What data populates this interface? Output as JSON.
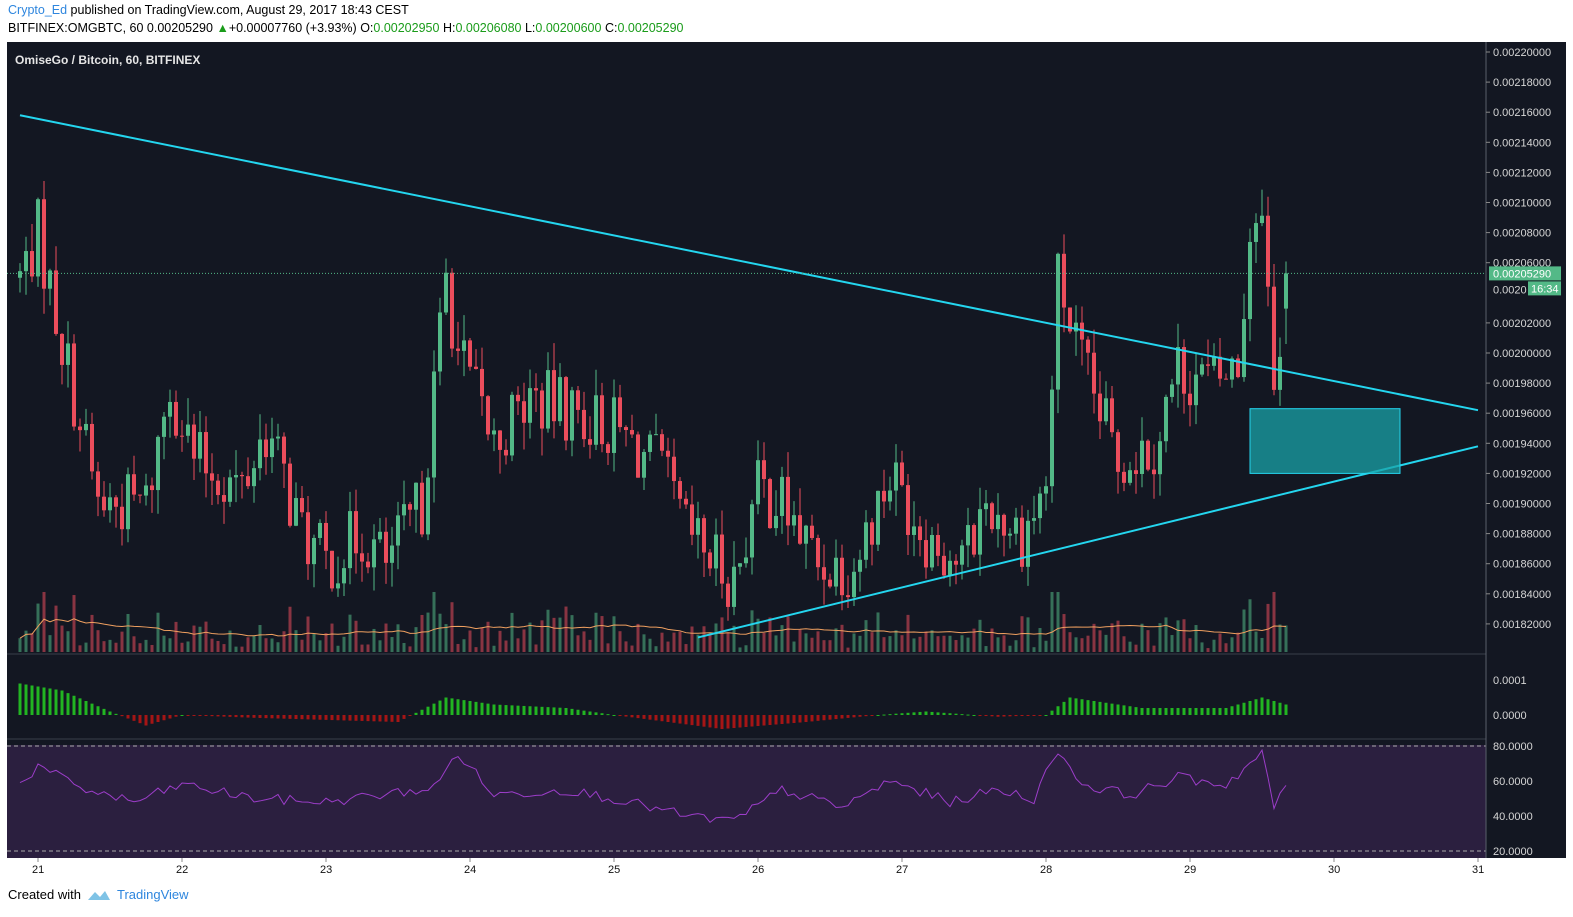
{
  "header": {
    "author": "Crypto_Ed",
    "published_text": "published on TradingView.com, August 29, 2017 18:43 CEST",
    "symbol": "BITFINEX:OMGBTC, 60",
    "last": "0.00205290",
    "change": "+0.00007760 (+3.93%)",
    "o_label": "O:",
    "o_value": "0.00202950",
    "h_label": "H:",
    "h_value": "0.00206080",
    "l_label": "L:",
    "l_value": "0.00200600",
    "c_label": "C:",
    "c_value": "0.00205290"
  },
  "chart_title": "OmiseGo / Bitcoin, 60, BITFINEX",
  "price_axis": {
    "ticks": [
      "0.00220000",
      "0.00218000",
      "0.00216000",
      "0.00214000",
      "0.00212000",
      "0.00210000",
      "0.00208000",
      "0.00206000",
      "0.00202000",
      "0.00200000",
      "0.00198000",
      "0.00196000",
      "0.00194000",
      "0.00192000",
      "0.00190000",
      "0.00188000",
      "0.00186000",
      "0.00184000",
      "0.00182000"
    ],
    "last_price_label": "0.00205290",
    "countdown_prefix": "0.0020",
    "countdown": "16:34"
  },
  "macd_axis": {
    "ticks": [
      "0.0001",
      "0.0000"
    ]
  },
  "rsi_axis": {
    "ticks": [
      "80.0000",
      "60.0000",
      "40.0000",
      "20.0000"
    ]
  },
  "date_axis": {
    "labels": [
      "21",
      "22",
      "23",
      "24",
      "25",
      "26",
      "27",
      "28",
      "29",
      "30",
      "31"
    ]
  },
  "footer": {
    "created_with": "Created with",
    "brand": "TradingView"
  },
  "colors": {
    "background": "#131722",
    "up": "#53b987",
    "down": "#eb4d5c",
    "trendline": "#24d6ef",
    "zone_fill": "#1aa3a8",
    "volume_ma": "#f0a060",
    "macd_up": "#22b522",
    "macd_down": "#a51515",
    "rsi_line": "#9c3dc9",
    "rsi_band": "#2b1f3f"
  },
  "chart_data": {
    "type": "candlestick",
    "symbol": "BITFINEX:OMGBTC",
    "interval": "60",
    "x_labels": [
      "21",
      "22",
      "23",
      "24",
      "25",
      "26",
      "27",
      "28",
      "29",
      "30",
      "31"
    ],
    "ylim": [
      0.00181,
      0.00222
    ],
    "anchors": [
      {
        "date": "Aug 20 21:00",
        "price": 0.00205
      },
      {
        "date": "Aug 21 00:00",
        "price": 0.00208
      },
      {
        "date": "Aug 21 10:00",
        "price": 0.0019
      },
      {
        "date": "Aug 21 18:00",
        "price": 0.0019
      },
      {
        "date": "Aug 21 22:00",
        "price": 0.00198
      },
      {
        "date": "Aug 22 02:00",
        "price": 0.00193
      },
      {
        "date": "Aug 22 10:00",
        "price": 0.00191
      },
      {
        "date": "Aug 22 14:00",
        "price": 0.00195
      },
      {
        "date": "Aug 22 20:00",
        "price": 0.00188
      },
      {
        "date": "Aug 23 00:00",
        "price": 0.00186
      },
      {
        "date": "Aug 23 06:00",
        "price": 0.00188
      },
      {
        "date": "Aug 23 10:00",
        "price": 0.00186
      },
      {
        "date": "Aug 23 16:00",
        "price": 0.0019
      },
      {
        "date": "Aug 23 20:00",
        "price": 0.00205
      },
      {
        "date": "Aug 23 22:00",
        "price": 0.002
      },
      {
        "date": "Aug 24 04:00",
        "price": 0.00194
      },
      {
        "date": "Aug 24 10:00",
        "price": 0.00197
      },
      {
        "date": "Aug 24 18:00",
        "price": 0.00196
      },
      {
        "date": "Aug 25 00:00",
        "price": 0.00195
      },
      {
        "date": "Aug 25 08:00",
        "price": 0.00192
      },
      {
        "date": "Aug 25 12:00",
        "price": 0.00188
      },
      {
        "date": "Aug 25 20:00",
        "price": 0.00185
      },
      {
        "date": "Aug 26 00:00",
        "price": 0.00191
      },
      {
        "date": "Aug 26 04:00",
        "price": 0.0019
      },
      {
        "date": "Aug 26 10:00",
        "price": 0.00186
      },
      {
        "date": "Aug 26 16:00",
        "price": 0.00186
      },
      {
        "date": "Aug 26 22:00",
        "price": 0.00192
      },
      {
        "date": "Aug 27 04:00",
        "price": 0.00188
      },
      {
        "date": "Aug 27 10:00",
        "price": 0.00186
      },
      {
        "date": "Aug 27 14:00",
        "price": 0.0019
      },
      {
        "date": "Aug 27 20:00",
        "price": 0.00188
      },
      {
        "date": "Aug 28 00:00",
        "price": 0.00191
      },
      {
        "date": "Aug 28 02:00",
        "price": 0.00205
      },
      {
        "date": "Aug 28 06:00",
        "price": 0.00199
      },
      {
        "date": "Aug 28 12:00",
        "price": 0.00193
      },
      {
        "date": "Aug 28 18:00",
        "price": 0.00194
      },
      {
        "date": "Aug 28 22:00",
        "price": 0.00199
      },
      {
        "date": "Aug 29 04:00",
        "price": 0.00198
      },
      {
        "date": "Aug 29 08:00",
        "price": 0.00199
      },
      {
        "date": "Aug 29 10:00",
        "price": 0.00208
      },
      {
        "date": "Aug 29 12:00",
        "price": 0.00211
      },
      {
        "date": "Aug 29 14:00",
        "price": 0.00197
      },
      {
        "date": "Aug 29 16:00",
        "price": 0.002053
      }
    ],
    "last_bar": {
      "open": 0.0020295,
      "high": 0.0020608,
      "low": 0.002006,
      "close": 0.0020529
    },
    "trendlines": [
      {
        "name": "",
        "from": {
          "date": "Aug 20 21:00",
          "price": 0.002158
        },
        "to": {
          "date": "Aug 31 00:00",
          "price": 0.001962
        }
      },
      {
        "name": "",
        "from": {
          "date": "Aug 25 14:00",
          "price": 0.001811
        },
        "to": {
          "date": "Aug 31 00:00",
          "price": 0.001938
        }
      }
    ],
    "zone": {
      "from_date": "Aug 29 10:00",
      "to_date": "Aug 30 11:00",
      "price_top": 0.001963,
      "price_bottom": 0.00192
    },
    "macd": {
      "ylim": [
        -5e-05,
        0.00015
      ],
      "anchors": [
        {
          "date": "Aug 20 21:00",
          "value": 9e-05
        },
        {
          "date": "Aug 21 04:00",
          "value": 7e-05
        },
        {
          "date": "Aug 21 12:00",
          "value": 1e-05
        },
        {
          "date": "Aug 21 18:00",
          "value": -3e-05
        },
        {
          "date": "Aug 22 00:00",
          "value": 0.0
        },
        {
          "date": "Aug 22 12:00",
          "value": -8e-06
        },
        {
          "date": "Aug 23 12:00",
          "value": -2e-05
        },
        {
          "date": "Aug 23 20:00",
          "value": 5e-05
        },
        {
          "date": "Aug 24 04:00",
          "value": 3e-05
        },
        {
          "date": "Aug 24 16:00",
          "value": 2e-05
        },
        {
          "date": "Aug 25 00:00",
          "value": 0.0
        },
        {
          "date": "Aug 25 18:00",
          "value": -4e-05
        },
        {
          "date": "Aug 26 08:00",
          "value": -2e-05
        },
        {
          "date": "Aug 26 20:00",
          "value": 0.0
        },
        {
          "date": "Aug 27 04:00",
          "value": 1e-05
        },
        {
          "date": "Aug 27 16:00",
          "value": -5e-06
        },
        {
          "date": "Aug 28 00:00",
          "value": 0.0
        },
        {
          "date": "Aug 28 04:00",
          "value": 5e-05
        },
        {
          "date": "Aug 28 16:00",
          "value": 2e-05
        },
        {
          "date": "Aug 29 06:00",
          "value": 2e-05
        },
        {
          "date": "Aug 29 12:00",
          "value": 5e-05
        },
        {
          "date": "Aug 29 16:00",
          "value": 3e-05
        }
      ]
    },
    "rsi": {
      "ylim": [
        20,
        80
      ],
      "bands": [
        80,
        20
      ],
      "anchors": [
        {
          "date": "Aug 20 21:00",
          "value": 58
        },
        {
          "date": "Aug 21 00:00",
          "value": 68
        },
        {
          "date": "Aug 21 08:00",
          "value": 55
        },
        {
          "date": "Aug 21 16:00",
          "value": 48
        },
        {
          "date": "Aug 22 00:00",
          "value": 58
        },
        {
          "date": "Aug 22 12:00",
          "value": 50
        },
        {
          "date": "Aug 23 00:00",
          "value": 48
        },
        {
          "date": "Aug 23 18:00",
          "value": 56
        },
        {
          "date": "Aug 23 22:00",
          "value": 76
        },
        {
          "date": "Aug 24 04:00",
          "value": 52
        },
        {
          "date": "Aug 24 16:00",
          "value": 55
        },
        {
          "date": "Aug 25 00:00",
          "value": 50
        },
        {
          "date": "Aug 25 12:00",
          "value": 40
        },
        {
          "date": "Aug 25 20:00",
          "value": 37
        },
        {
          "date": "Aug 26 04:00",
          "value": 55
        },
        {
          "date": "Aug 26 14:00",
          "value": 45
        },
        {
          "date": "Aug 26 22:00",
          "value": 60
        },
        {
          "date": "Aug 27 08:00",
          "value": 48
        },
        {
          "date": "Aug 27 16:00",
          "value": 55
        },
        {
          "date": "Aug 27 22:00",
          "value": 50
        },
        {
          "date": "Aug 28 02:00",
          "value": 78
        },
        {
          "date": "Aug 28 06:00",
          "value": 58
        },
        {
          "date": "Aug 28 14:00",
          "value": 52
        },
        {
          "date": "Aug 28 22:00",
          "value": 62
        },
        {
          "date": "Aug 29 06:00",
          "value": 58
        },
        {
          "date": "Aug 29 12:00",
          "value": 76
        },
        {
          "date": "Aug 29 14:00",
          "value": 45
        },
        {
          "date": "Aug 29 16:00",
          "value": 56
        }
      ]
    }
  }
}
